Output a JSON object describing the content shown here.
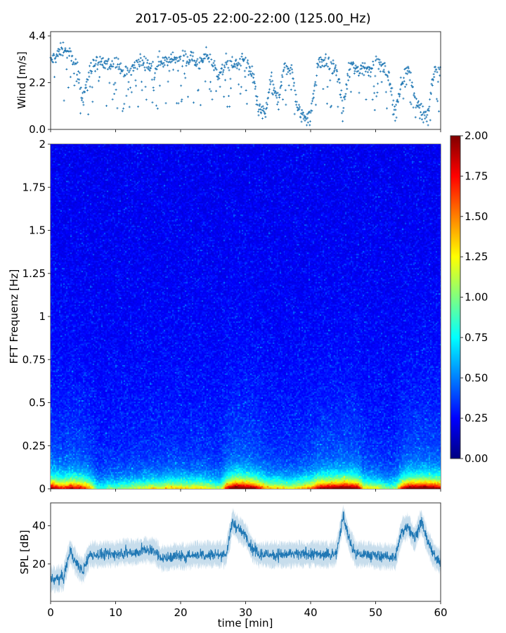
{
  "title": "2017-05-05 22:00-22:00 (125.00_Hz)",
  "chart_data": [
    {
      "type": "scatter",
      "ylabel": "Wind [m/s]",
      "ylim": [
        0,
        4.6
      ],
      "yticks": [
        "0.0",
        "2.2",
        "4.4"
      ],
      "ytick_values": [
        0,
        2.2,
        4.4
      ],
      "xlim": [
        0,
        60
      ],
      "color": "#1f77b4",
      "marker": "plus",
      "x_minutes": [
        0,
        1,
        2,
        3,
        4,
        5,
        6,
        7,
        8,
        9,
        10,
        11,
        12,
        13,
        14,
        15,
        16,
        17,
        18,
        19,
        20,
        21,
        22,
        23,
        24,
        25,
        26,
        27,
        28,
        29,
        30,
        31,
        32,
        33,
        34,
        35,
        36,
        37,
        38,
        39,
        40,
        41,
        42,
        43,
        44,
        45,
        46,
        47,
        48,
        49,
        50,
        51,
        52,
        53,
        54,
        55,
        56,
        57,
        58,
        59,
        60
      ],
      "wind_approx": [
        3.2,
        3.5,
        3.8,
        3.5,
        3.0,
        1.5,
        2.8,
        3.2,
        3.1,
        3.0,
        3.3,
        2.7,
        2.6,
        3.0,
        3.2,
        3.0,
        2.8,
        3.3,
        3.1,
        3.3,
        3.5,
        3.3,
        3.4,
        3.0,
        3.6,
        3.0,
        2.5,
        3.2,
        3.0,
        3.2,
        3.3,
        2.6,
        1.0,
        0.7,
        2.5,
        1.2,
        3.0,
        2.9,
        1.0,
        0.7,
        0.6,
        3.0,
        3.3,
        3.0,
        2.8,
        1.0,
        3.1,
        2.8,
        3.0,
        2.8,
        3.2,
        3.0,
        2.5,
        1.0,
        2.2,
        3.0,
        1.5,
        1.0,
        0.5,
        2.8,
        2.7
      ]
    },
    {
      "type": "heatmap",
      "ylabel": "FFT Frequenz [Hz]",
      "ylim": [
        0,
        2
      ],
      "yticks": [
        "0",
        "0.25",
        "0.5",
        "0.75",
        "1",
        "1.25",
        "1.5",
        "1.75",
        "2"
      ],
      "ytick_values": [
        0,
        0.25,
        0.5,
        0.75,
        1,
        1.25,
        1.5,
        1.75,
        2
      ],
      "xlim": [
        0,
        60
      ],
      "colormap": "jet",
      "colorbar": {
        "range": [
          0,
          2
        ],
        "ticks": [
          "0.00",
          "0.25",
          "0.50",
          "0.75",
          "1.00",
          "1.25",
          "1.50",
          "1.75",
          "2.00"
        ]
      },
      "lowfreq_energy_approx": [
        1.8,
        1.6,
        1.5,
        1.7,
        1.6,
        1.5,
        1.2,
        0.6,
        0.6,
        0.7,
        0.7,
        0.8,
        0.8,
        0.9,
        0.9,
        1.0,
        1.0,
        1.0,
        1.1,
        1.1,
        1.1,
        1.0,
        1.1,
        1.1,
        1.0,
        0.9,
        0.8,
        1.6,
        2.0,
        2.0,
        1.9,
        1.8,
        1.5,
        1.2,
        1.1,
        1.1,
        1.0,
        1.0,
        1.1,
        1.2,
        1.3,
        1.7,
        1.8,
        1.8,
        1.9,
        2.0,
        1.9,
        1.8,
        1.1,
        1.0,
        1.0,
        0.8,
        0.7,
        0.8,
        1.6,
        1.9,
        1.9,
        2.0,
        1.9,
        1.8,
        1.7
      ]
    },
    {
      "type": "line",
      "ylabel": "SPL [dB]",
      "xlabel": "time [min]",
      "ylim": [
        0.4,
        52
      ],
      "yticks": [
        "20",
        "40"
      ],
      "ytick_values": [
        20,
        40
      ],
      "xlim": [
        0,
        60
      ],
      "xticks": [
        "0",
        "10",
        "20",
        "30",
        "40",
        "50",
        "60"
      ],
      "xtick_values": [
        0,
        10,
        20,
        30,
        40,
        50,
        60
      ],
      "color": "#1f77b4",
      "spl_approx": [
        12,
        12,
        13,
        27,
        20,
        16,
        25,
        25,
        25,
        25,
        25,
        26,
        26,
        26,
        27,
        27,
        27,
        23,
        23,
        24,
        24,
        24,
        25,
        25,
        25,
        25,
        25,
        25,
        42,
        38,
        35,
        28,
        25,
        25,
        25,
        25,
        25,
        25,
        25,
        25,
        25,
        25,
        25,
        25,
        26,
        45,
        32,
        25,
        25,
        25,
        24,
        24,
        24,
        23,
        37,
        40,
        33,
        42,
        32,
        24,
        22
      ]
    }
  ]
}
